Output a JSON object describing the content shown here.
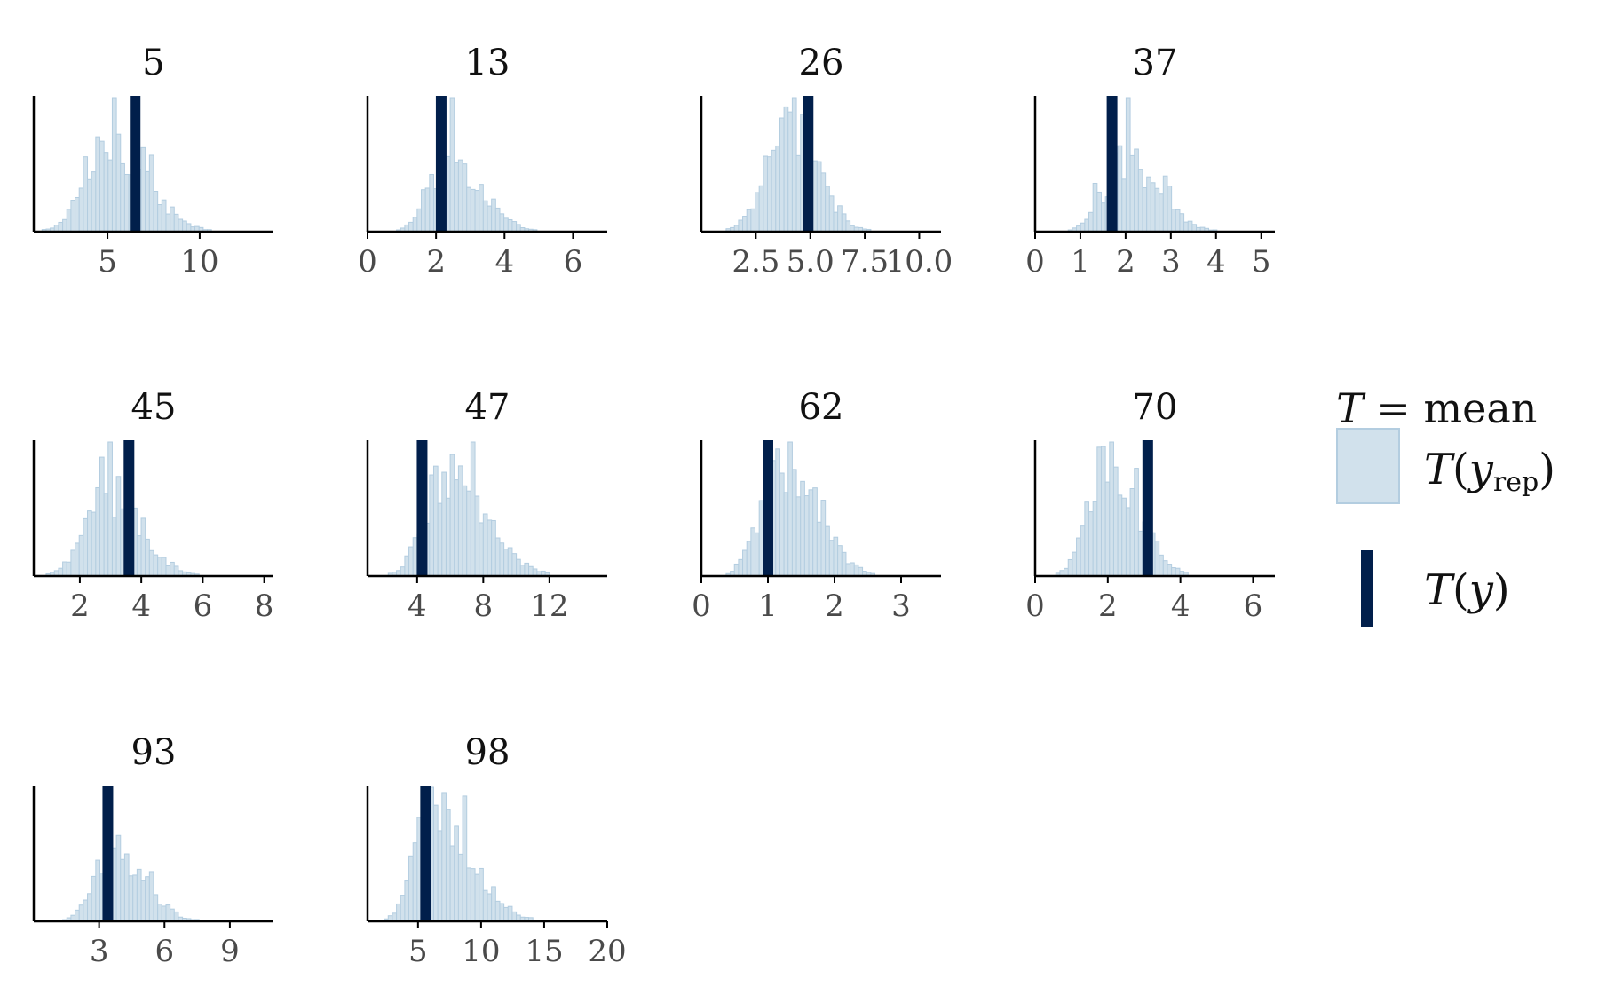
{
  "colors": {
    "yrep_fill": "#d1e1ec",
    "yrep_stroke": "#b3cde0",
    "y_line": "#011f4b",
    "axis": "#000000"
  },
  "legend": {
    "title_symbol": "T",
    "title_eq": " = mean",
    "yrep_T": "T",
    "yrep_open": "(",
    "yrep_var": "y",
    "yrep_sub": "rep",
    "yrep_close": ")",
    "y_T": "T",
    "y_open": "(",
    "y_var": "y",
    "y_close": ")"
  },
  "chart_data": [
    {
      "type": "bar",
      "title": "5",
      "xlim": [
        1,
        14
      ],
      "xticks": [
        5,
        10
      ],
      "tick_labels": [
        "5",
        "10"
      ],
      "y_stat": 6.5,
      "shape": {
        "mode": 5.2,
        "sd_left": 1.3,
        "sd_right": 1.9
      }
    },
    {
      "type": "bar",
      "title": "13",
      "xlim": [
        0,
        7
      ],
      "xticks": [
        0,
        2,
        4,
        6
      ],
      "tick_labels": [
        "0",
        "2",
        "4",
        "6"
      ],
      "y_stat": 2.15,
      "shape": {
        "mode": 2.4,
        "sd_left": 0.55,
        "sd_right": 0.9
      }
    },
    {
      "type": "bar",
      "title": "26",
      "xlim": [
        0,
        11
      ],
      "xticks": [
        2.5,
        5.0,
        7.5,
        10.0
      ],
      "tick_labels": [
        "2.5",
        "5.0",
        "7.5",
        "10.0"
      ],
      "y_stat": 4.9,
      "shape": {
        "mode": 4.0,
        "sd_left": 1.0,
        "sd_right": 1.3
      }
    },
    {
      "type": "bar",
      "title": "37",
      "xlim": [
        0,
        5.3
      ],
      "xticks": [
        0,
        1,
        2,
        3,
        4,
        5
      ],
      "tick_labels": [
        "0",
        "1",
        "2",
        "3",
        "4",
        "5"
      ],
      "y_stat": 1.7,
      "shape": {
        "mode": 2.0,
        "sd_left": 0.45,
        "sd_right": 0.7
      }
    },
    {
      "type": "bar",
      "title": "45",
      "xlim": [
        0.5,
        8.3
      ],
      "xticks": [
        2,
        4,
        6,
        8
      ],
      "tick_labels": [
        "2",
        "4",
        "6",
        "8"
      ],
      "y_stat": 3.6,
      "shape": {
        "mode": 3.0,
        "sd_left": 0.75,
        "sd_right": 1.0
      }
    },
    {
      "type": "bar",
      "title": "47",
      "xlim": [
        1,
        15.5
      ],
      "xticks": [
        4,
        8,
        12
      ],
      "tick_labels": [
        "4",
        "8",
        "12"
      ],
      "y_stat": 4.3,
      "shape": {
        "mode": 5.6,
        "sd_left": 1.2,
        "sd_right": 2.4
      }
    },
    {
      "type": "bar",
      "title": "62",
      "xlim": [
        0,
        3.6
      ],
      "xticks": [
        0,
        1,
        2,
        3
      ],
      "tick_labels": [
        "0",
        "1",
        "2",
        "3"
      ],
      "y_stat": 1.0,
      "shape": {
        "mode": 1.2,
        "sd_left": 0.3,
        "sd_right": 0.5
      }
    },
    {
      "type": "bar",
      "title": "70",
      "xlim": [
        0,
        6.6
      ],
      "xticks": [
        0,
        2,
        4,
        6
      ],
      "tick_labels": [
        "0",
        "2",
        "4",
        "6"
      ],
      "y_stat": 3.1,
      "shape": {
        "mode": 2.0,
        "sd_left": 0.5,
        "sd_right": 0.8
      }
    },
    {
      "type": "bar",
      "title": "93",
      "xlim": [
        0,
        11
      ],
      "xticks": [
        3,
        6,
        9
      ],
      "tick_labels": [
        "3",
        "6",
        "9"
      ],
      "y_stat": 3.4,
      "shape": {
        "mode": 3.6,
        "sd_left": 0.8,
        "sd_right": 1.4
      }
    },
    {
      "type": "bar",
      "title": "98",
      "xlim": [
        1,
        20
      ],
      "xticks": [
        5,
        10,
        15,
        20
      ],
      "tick_labels": [
        "5",
        "10",
        "15",
        "20"
      ],
      "y_stat": 5.6,
      "shape": {
        "mode": 6.0,
        "sd_left": 1.3,
        "sd_right": 3.0
      }
    }
  ]
}
